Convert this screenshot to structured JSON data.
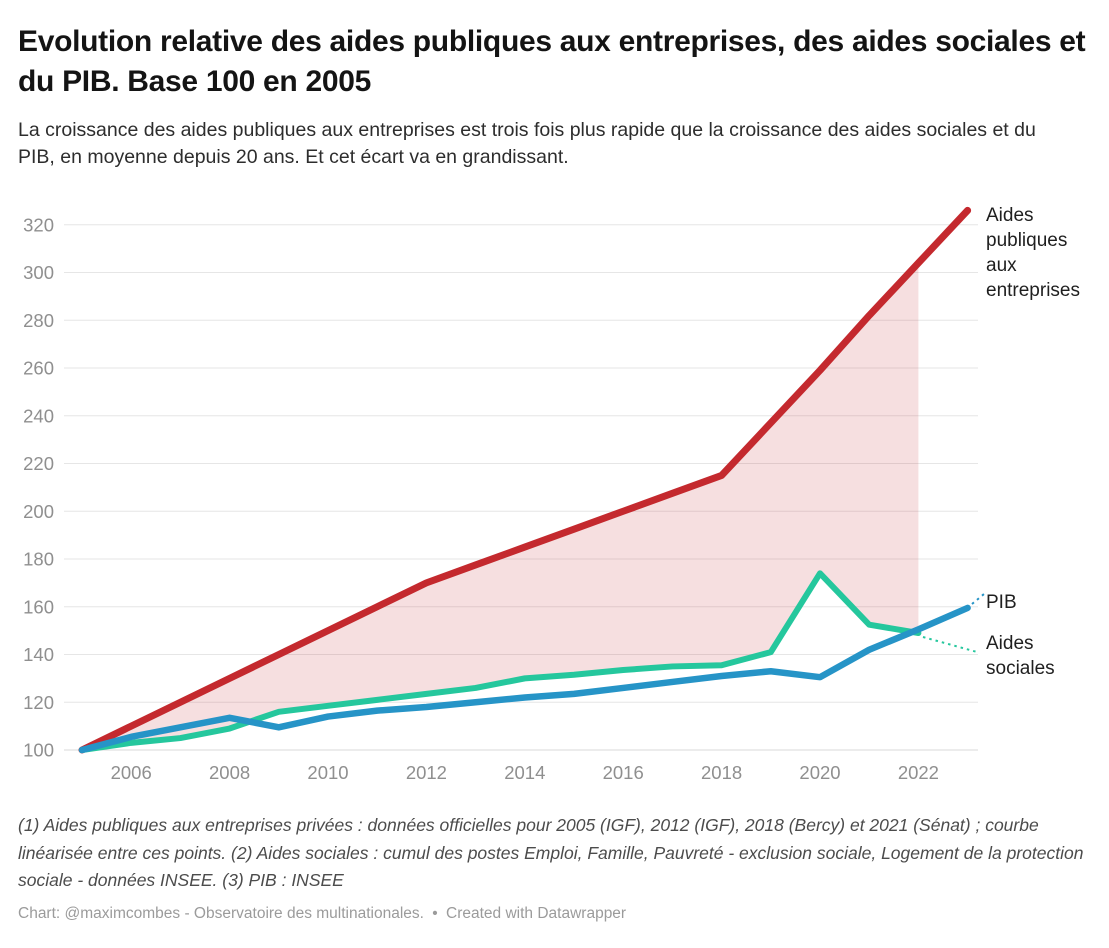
{
  "header": {
    "title": "Evolution relative des aides publiques aux entreprises, des aides sociales et du PIB. Base 100 en 2005",
    "subtitle": "La croissance des aides publiques aux entreprises est trois fois plus rapide que la croissance des aides sociales et du PIB, en moyenne depuis 20 ans. Et cet écart va en grandissant."
  },
  "chart_data": {
    "type": "line",
    "title": "Evolution relative des aides publiques aux entreprises, des aides sociales et du PIB. Base 100 en 2005",
    "x": [
      2005,
      2006,
      2007,
      2008,
      2009,
      2010,
      2011,
      2012,
      2013,
      2014,
      2015,
      2016,
      2017,
      2018,
      2019,
      2020,
      2021,
      2022,
      2023
    ],
    "series": [
      {
        "name": "Aides publiques aux entreprises",
        "label": "Aides\npubliques\naux\nentreprises",
        "color": "#c4292e",
        "values": [
          100,
          110,
          120,
          130,
          140,
          150,
          160,
          170,
          177.5,
          185,
          192.5,
          200,
          207.5,
          215,
          237,
          259,
          282,
          304,
          326
        ]
      },
      {
        "name": "PIB",
        "label": "PIB",
        "color": "#2694c7",
        "values": [
          100,
          105.5,
          109.5,
          113.5,
          109.5,
          114,
          116.5,
          118,
          120,
          122,
          123.5,
          126,
          128.5,
          131,
          133,
          130.5,
          142,
          150.5,
          159.5
        ]
      },
      {
        "name": "Aides sociales",
        "label": "Aides\nsociales",
        "color": "#25c79d",
        "values": [
          100,
          103,
          105,
          109,
          116,
          118.5,
          121,
          123.5,
          126,
          130,
          131.5,
          133.5,
          135,
          135.5,
          141,
          174,
          152.5,
          149,
          null
        ]
      }
    ],
    "area_between": {
      "upper": "Aides publiques aux entreprises",
      "lower": "Aides sociales",
      "color": "#c4292e",
      "opacity": 0.15
    },
    "y_ticks": [
      100,
      120,
      140,
      160,
      180,
      200,
      220,
      240,
      260,
      280,
      300,
      320
    ],
    "x_ticks": [
      2006,
      2008,
      2010,
      2012,
      2014,
      2016,
      2018,
      2020,
      2022
    ],
    "ylim": [
      100,
      330
    ],
    "xlim": [
      2005,
      2023
    ],
    "grid": true,
    "legend_position": "right of line ends",
    "grid_color": "#e6e6e6",
    "baseline_color": "#d9d9d9",
    "axis_color": "#8f8f8f"
  },
  "footer": {
    "notes": "(1) Aides publiques aux entreprises privées : données officielles pour 2005 (IGF), 2012 (IGF), 2018 (Bercy) et 2021 (Sénat) ; courbe linéarisée entre ces points. (2) Aides sociales : cumul des postes Emploi, Famille, Pauvreté - exclusion sociale, Logement de la protection sociale - données INSEE. (3) PIB : INSEE",
    "credit_chart": "Chart: @maximcombes - Observatoire des multinationales.",
    "credit_sep": "•",
    "credit_tool": "Created with Datawrapper"
  }
}
